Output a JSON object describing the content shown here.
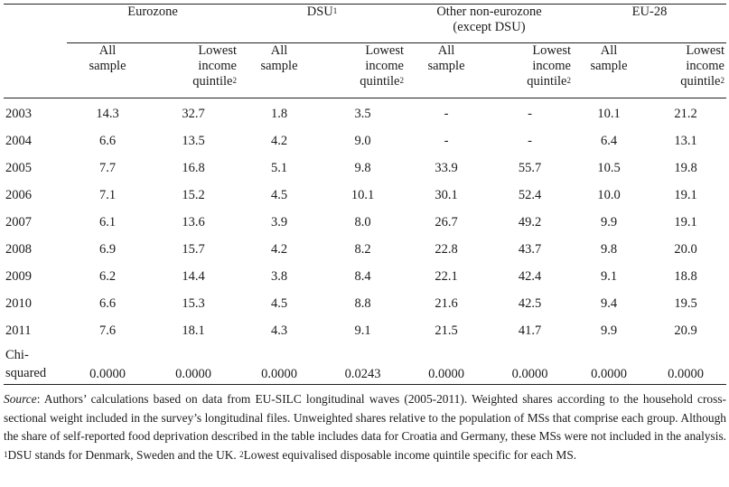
{
  "groups": [
    "Eurozone",
    "DSU",
    "Other non-eurozone (except DSU)",
    "EU-28"
  ],
  "group_marks": {
    "dsu_sup": "1"
  },
  "group_lines": {
    "other_l1": "Other non-eurozone",
    "other_l2": "(except DSU)"
  },
  "sub": {
    "all_l1": "All",
    "all_l2": "sample",
    "low_l1": "Lowest",
    "low_l2": "income",
    "low_l3": "quintile",
    "low_sup": "2"
  },
  "rows": [
    {
      "year": "2003",
      "v": [
        "14.3",
        "32.7",
        "1.8",
        "3.5",
        "-",
        "-",
        "10.1",
        "21.2"
      ]
    },
    {
      "year": "2004",
      "v": [
        "6.6",
        "13.5",
        "4.2",
        "9.0",
        "-",
        "-",
        "6.4",
        "13.1"
      ]
    },
    {
      "year": "2005",
      "v": [
        "7.7",
        "16.8",
        "5.1",
        "9.8",
        "33.9",
        "55.7",
        "10.5",
        "19.8"
      ]
    },
    {
      "year": "2006",
      "v": [
        "7.1",
        "15.2",
        "4.5",
        "10.1",
        "30.1",
        "52.4",
        "10.0",
        "19.1"
      ]
    },
    {
      "year": "2007",
      "v": [
        "6.1",
        "13.6",
        "3.9",
        "8.0",
        "26.7",
        "49.2",
        "9.9",
        "19.1"
      ]
    },
    {
      "year": "2008",
      "v": [
        "6.9",
        "15.7",
        "4.2",
        "8.2",
        "22.8",
        "43.7",
        "9.8",
        "20.0"
      ]
    },
    {
      "year": "2009",
      "v": [
        "6.2",
        "14.4",
        "3.8",
        "8.4",
        "22.1",
        "42.4",
        "9.1",
        "18.8"
      ]
    },
    {
      "year": "2010",
      "v": [
        "6.6",
        "15.3",
        "4.5",
        "8.8",
        "21.6",
        "42.5",
        "9.4",
        "19.5"
      ]
    },
    {
      "year": "2011",
      "v": [
        "7.6",
        "18.1",
        "4.3",
        "9.1",
        "21.5",
        "41.7",
        "9.9",
        "20.9"
      ]
    }
  ],
  "chi": {
    "label_l1": "Chi-",
    "label_l2": "squared",
    "v": [
      "0.0000",
      "0.0000",
      "0.0000",
      "0.0243",
      "0.0000",
      "0.0000",
      "0.0000",
      "0.0000"
    ]
  },
  "note": {
    "source_label": "Source",
    "source_text": ": Authors’ calculations based on data from EU-SILC longitudinal waves (2005-2011). Weighted shares according to the household cross-sectional weight included in the survey’s longitudinal files. Unweighted shares relative to the population of MSs that comprise each group. Although the share of self-reported food deprivation described in the table includes data for Croatia and Germany, these MSs were not included in the analysis. ",
    "fn1_mark": "1",
    "fn1_text": "DSU stands for Denmark, Sweden and the UK. ",
    "fn2_mark": "2",
    "fn2_text": "Lowest equivalised disposable income quintile specific for each MS."
  }
}
